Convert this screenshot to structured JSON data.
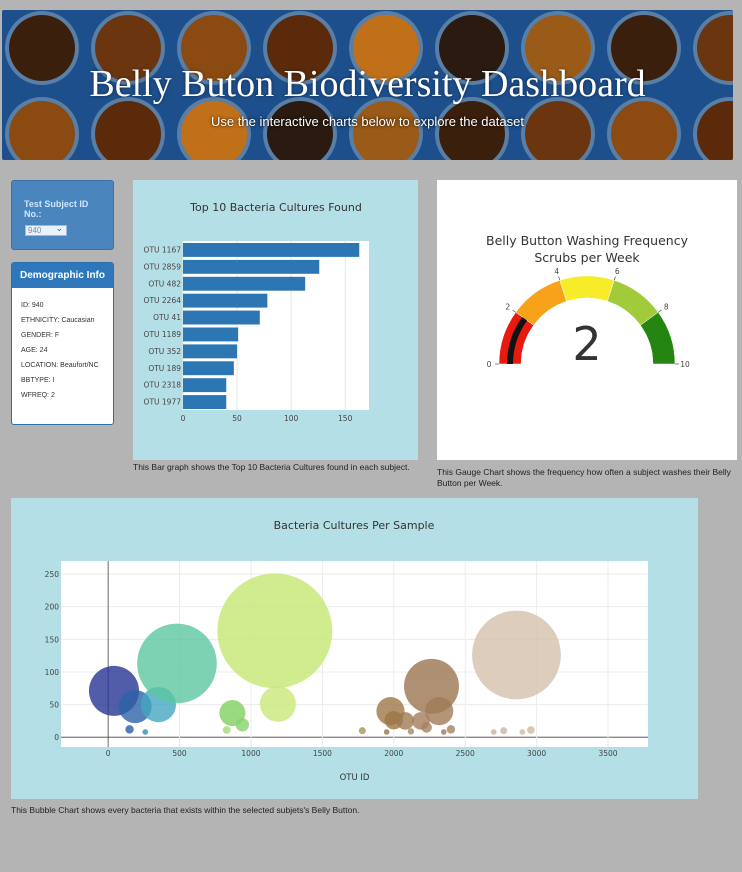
{
  "banner": {
    "title": "Belly Buton Biodiversity Dashboard",
    "subtitle": "Use the interactive charts below to explore the dataset"
  },
  "subject": {
    "label": "Test Subject ID No.:",
    "selected": "940"
  },
  "demographics": {
    "header": "Demographic Info",
    "items": [
      "ID: 940",
      "ETHNICITY: Caucasian",
      "GENDER: F",
      "AGE: 24",
      "LOCATION: Beaufort/NC",
      "BBTYPE: I",
      "WFREQ: 2"
    ]
  },
  "captions": {
    "bar": "This Bar graph shows the Top 10 Bacteria Cultures found in each subject.",
    "gauge": "This Gauge Chart shows the frequency how often a subject washes their Belly Button per Week.",
    "bubble": "This Bubble Chart shows every bacteria that exists within the selected subjets's Belly Button."
  },
  "colors": {
    "page_bg": "#b4b4b4",
    "panel_accent": "#2f77bb",
    "bar_color": "#2c77b3",
    "chart_bg": "#b5dfe6"
  },
  "chart_data": [
    {
      "type": "bar",
      "orientation": "horizontal",
      "title": "Top 10 Bacteria Cultures Found",
      "categories": [
        "OTU 1167",
        "OTU 2859",
        "OTU 482",
        "OTU 2264",
        "OTU 41",
        "OTU 1189",
        "OTU 352",
        "OTU 189",
        "OTU 2318",
        "OTU 1977"
      ],
      "values": [
        163,
        126,
        113,
        78,
        71,
        51,
        50,
        47,
        40,
        40
      ],
      "xlim": [
        0,
        172
      ],
      "xticks": [
        0,
        50,
        100,
        150
      ],
      "grid": true
    },
    {
      "type": "gauge",
      "title": "Belly Button Washing Frequency",
      "subtitle": "Scrubs per Week",
      "value": 2,
      "range": [
        0,
        10
      ],
      "ticks": [
        0,
        2,
        4,
        6,
        8,
        10
      ],
      "bands": [
        {
          "from": 0,
          "to": 2,
          "color": "#e8190f"
        },
        {
          "from": 2,
          "to": 4,
          "color": "#f8a219"
        },
        {
          "from": 4,
          "to": 6,
          "color": "#f8ec2a"
        },
        {
          "from": 6,
          "to": 8,
          "color": "#a1cb3a"
        },
        {
          "from": 8,
          "to": 10,
          "color": "#248611"
        }
      ],
      "bar_color": "#111111"
    },
    {
      "type": "scatter",
      "title": "Bacteria Cultures Per Sample",
      "xlabel": "OTU ID",
      "xlim": [
        -330,
        3780
      ],
      "ylim": [
        -15,
        270
      ],
      "xticks": [
        0,
        500,
        1000,
        1500,
        2000,
        2500,
        3000,
        3500
      ],
      "yticks": [
        0,
        50,
        100,
        150,
        200,
        250
      ],
      "grid": true,
      "points": [
        {
          "x": 41,
          "y": 71,
          "color": "#253494"
        },
        {
          "x": 189,
          "y": 47,
          "color": "#2c63a8"
        },
        {
          "x": 352,
          "y": 50,
          "color": "#43a6c0"
        },
        {
          "x": 482,
          "y": 113,
          "color": "#5bc7a0"
        },
        {
          "x": 1167,
          "y": 163,
          "color": "#c5e773"
        },
        {
          "x": 1189,
          "y": 51,
          "color": "#c9e87a"
        },
        {
          "x": 870,
          "y": 37,
          "color": "#7fd160"
        },
        {
          "x": 940,
          "y": 19,
          "color": "#86d36a"
        },
        {
          "x": 830,
          "y": 11,
          "color": "#a3db6e"
        },
        {
          "x": 2264,
          "y": 78,
          "color": "#9a7550"
        },
        {
          "x": 2318,
          "y": 40,
          "color": "#a07a55"
        },
        {
          "x": 1977,
          "y": 40,
          "color": "#9e7746"
        },
        {
          "x": 2000,
          "y": 26,
          "color": "#9c7644"
        },
        {
          "x": 2080,
          "y": 25,
          "color": "#9d7a52"
        },
        {
          "x": 2190,
          "y": 25,
          "color": "#a27e5a"
        },
        {
          "x": 2230,
          "y": 15,
          "color": "#a6815f"
        },
        {
          "x": 2120,
          "y": 9,
          "color": "#a88463"
        },
        {
          "x": 2859,
          "y": 126,
          "color": "#d4c0ad"
        },
        {
          "x": 2700,
          "y": 8,
          "color": "#c9b09a"
        },
        {
          "x": 2770,
          "y": 10,
          "color": "#cdb6a1"
        },
        {
          "x": 2960,
          "y": 11,
          "color": "#d0bba7"
        },
        {
          "x": 150,
          "y": 12,
          "color": "#2a5ea6"
        },
        {
          "x": 260,
          "y": 8,
          "color": "#3b87ba"
        },
        {
          "x": 1780,
          "y": 10,
          "color": "#a8955a"
        },
        {
          "x": 2400,
          "y": 12,
          "color": "#a4815d"
        },
        {
          "x": 2350,
          "y": 8,
          "color": "#a07c58"
        },
        {
          "x": 1950,
          "y": 8,
          "color": "#9b7745"
        },
        {
          "x": 2900,
          "y": 8,
          "color": "#cfb8a4"
        }
      ]
    }
  ]
}
